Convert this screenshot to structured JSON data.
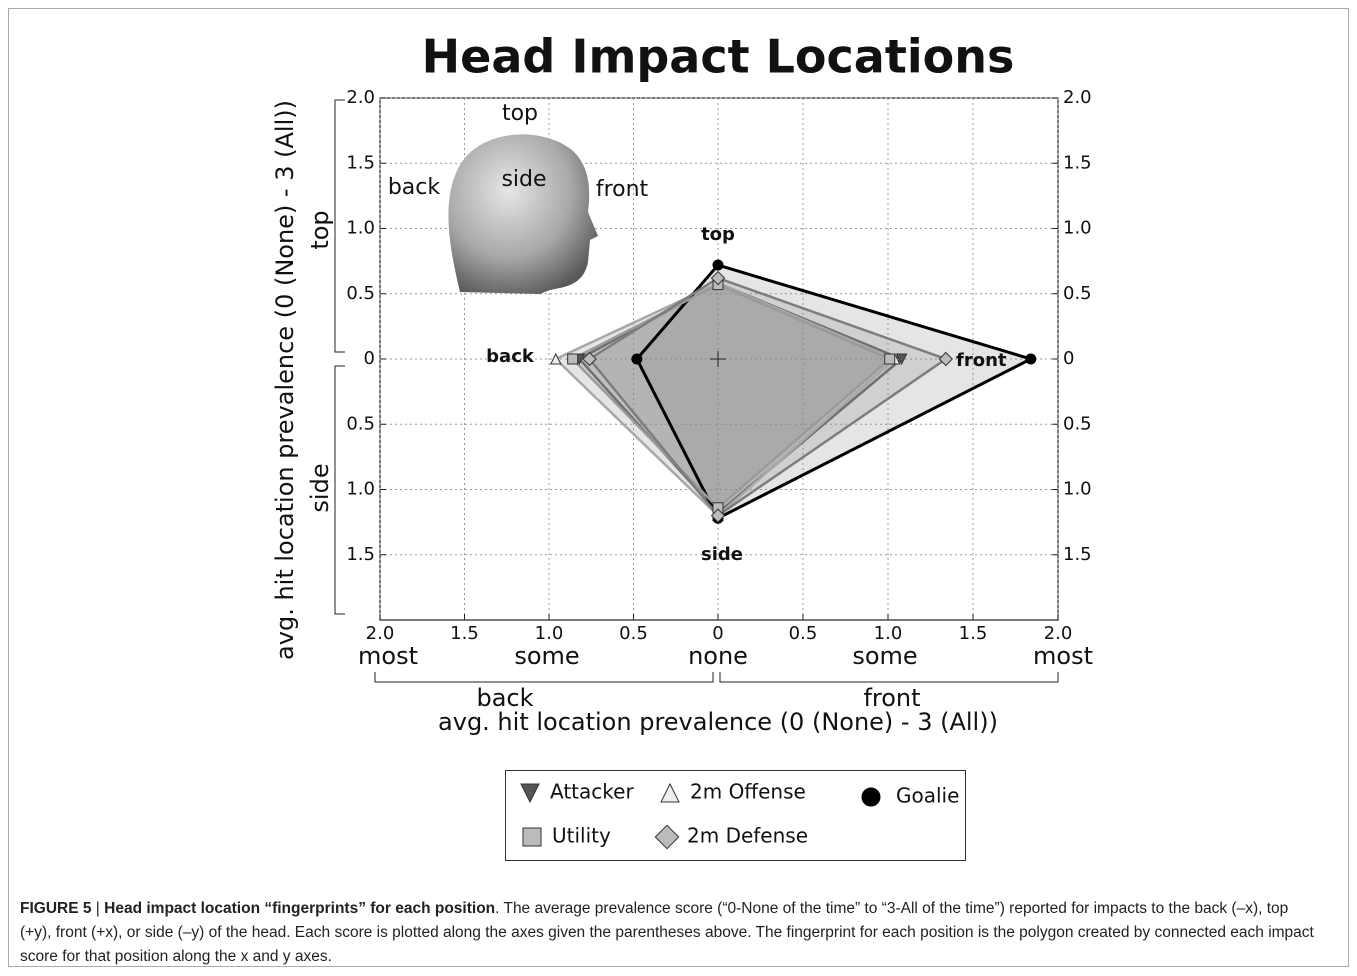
{
  "chart_data": {
    "type": "fingerprint",
    "title": "Head Impact Locations",
    "categories": [
      "back",
      "top",
      "front",
      "side"
    ],
    "series": [
      {
        "name": "Attacker",
        "marker": "v",
        "color": "#6f6f6f",
        "values": [
          0.82,
          0.58,
          1.08,
          1.18
        ]
      },
      {
        "name": "2m Offense",
        "marker": "^",
        "color": "#a8a8a8",
        "values": [
          0.96,
          0.58,
          1.04,
          1.2
        ]
      },
      {
        "name": "Goalie",
        "marker": "o",
        "color": "#000000",
        "values": [
          0.48,
          0.72,
          1.84,
          1.22
        ]
      },
      {
        "name": "Utility",
        "marker": "s",
        "color": "#9a9a9a",
        "values": [
          0.86,
          0.57,
          1.01,
          1.14
        ]
      },
      {
        "name": "2m Defense",
        "marker": "D",
        "color": "#7d7d7d",
        "values": [
          0.76,
          0.62,
          1.34,
          1.2
        ]
      }
    ],
    "xlim_back": [
      0,
      2
    ],
    "xlim_front": [
      0,
      2
    ],
    "ylim_top": [
      0,
      2
    ],
    "ylim_side": [
      0,
      2
    ],
    "xticks_back": [
      {
        "value": 2,
        "label": "2.0"
      },
      1.5,
      {
        "value": 1,
        "label": "1.0"
      },
      0.5
    ],
    "xticks_front": [
      0,
      0.5,
      {
        "value": 1,
        "label": "1.0"
      },
      1.5,
      {
        "value": 2,
        "label": "2.0"
      }
    ],
    "yticks_top": [
      0,
      0.5,
      {
        "value": 1,
        "label": "1.0"
      },
      1.5,
      {
        "value": 2,
        "label": "2.0"
      }
    ],
    "yticks_side": [
      0.5,
      {
        "value": 1,
        "label": "1.0"
      },
      1.5
    ],
    "grid": true,
    "x_scale_labels": [
      "most",
      "some",
      "none",
      "some",
      "most"
    ],
    "x_group_labels": [
      "back",
      "front"
    ],
    "y_group_labels": [
      "top",
      "side"
    ],
    "x_label": "avg. hit location prevalence (0 (None) - 3 (All))",
    "y_label": "avg. hit location prevalence (0 (None) - 3 (All))",
    "head_labels": [
      "top",
      "back",
      "side",
      "front"
    ]
  },
  "caption": {
    "label": "FIGURE 5",
    "separator": "|",
    "title": "Head impact location “fingerprints” for each position",
    "text": ". The average prevalence score (“0-None of the time” to “3-All of the time”) reported for impacts to the back (–x), top (+y), front (+x), or side (–y) of the head. Each score is plotted along the axes given the parentheses above. The fingerprint for each position is the polygon created by connected each impact score for that position along the x and y axes."
  }
}
